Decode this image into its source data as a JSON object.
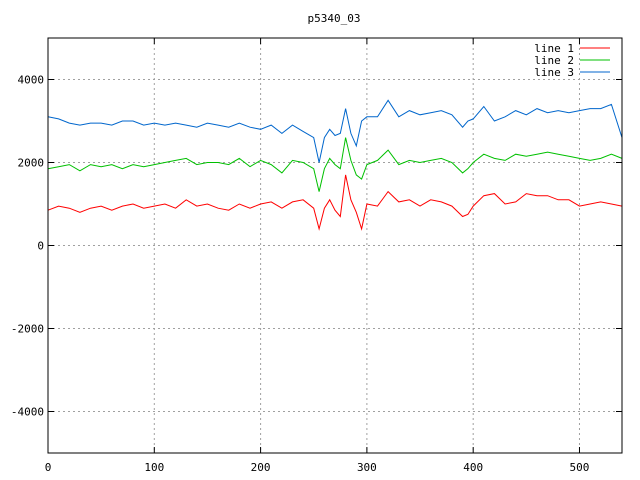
{
  "chart_data": {
    "type": "line",
    "title": "p5340_03",
    "xlabel": "",
    "ylabel": "",
    "xlim": [
      0,
      540
    ],
    "ylim": [
      -5000,
      5000
    ],
    "xticks": [
      0,
      100,
      200,
      300,
      400,
      500
    ],
    "yticks": [
      -4000,
      -2000,
      0,
      2000,
      4000
    ],
    "grid": true,
    "legend_position": "top-right",
    "series": [
      {
        "name": "line 1",
        "color": "#ff0000",
        "x": [
          0,
          10,
          20,
          30,
          40,
          50,
          60,
          70,
          80,
          90,
          100,
          110,
          120,
          130,
          140,
          150,
          160,
          170,
          180,
          190,
          200,
          210,
          220,
          230,
          240,
          250,
          255,
          260,
          265,
          270,
          275,
          280,
          285,
          290,
          295,
          300,
          310,
          320,
          330,
          340,
          350,
          360,
          370,
          380,
          390,
          395,
          400,
          410,
          420,
          430,
          440,
          450,
          460,
          470,
          480,
          490,
          500,
          510,
          520,
          530,
          540
        ],
        "y": [
          850,
          950,
          900,
          800,
          900,
          950,
          850,
          950,
          1000,
          900,
          950,
          1000,
          900,
          1100,
          950,
          1000,
          900,
          850,
          1000,
          900,
          1000,
          1050,
          900,
          1050,
          1100,
          900,
          400,
          900,
          1100,
          850,
          700,
          1700,
          1100,
          800,
          400,
          1000,
          950,
          1300,
          1050,
          1100,
          950,
          1100,
          1050,
          950,
          700,
          750,
          950,
          1200,
          1250,
          1000,
          1050,
          1250,
          1200,
          1200,
          1100,
          1100,
          950,
          1000,
          1050,
          1000,
          950
        ]
      },
      {
        "name": "line 2",
        "color": "#00c000",
        "x": [
          0,
          10,
          20,
          30,
          40,
          50,
          60,
          70,
          80,
          90,
          100,
          110,
          120,
          130,
          140,
          150,
          160,
          170,
          180,
          190,
          200,
          210,
          220,
          230,
          240,
          250,
          255,
          260,
          265,
          270,
          275,
          280,
          285,
          290,
          295,
          300,
          310,
          320,
          330,
          340,
          350,
          360,
          370,
          380,
          390,
          395,
          400,
          410,
          420,
          430,
          440,
          450,
          460,
          470,
          480,
          490,
          500,
          510,
          520,
          530,
          540
        ],
        "y": [
          1850,
          1900,
          1950,
          1800,
          1950,
          1900,
          1950,
          1850,
          1950,
          1900,
          1950,
          2000,
          2050,
          2100,
          1950,
          2000,
          2000,
          1950,
          2100,
          1900,
          2050,
          1950,
          1750,
          2050,
          2000,
          1850,
          1300,
          1850,
          2100,
          1950,
          1850,
          2600,
          2050,
          1700,
          1600,
          1950,
          2050,
          2300,
          1950,
          2050,
          2000,
          2050,
          2100,
          2000,
          1750,
          1850,
          2000,
          2200,
          2100,
          2050,
          2200,
          2150,
          2200,
          2250,
          2200,
          2150,
          2100,
          2050,
          2100,
          2200,
          2100
        ]
      },
      {
        "name": "line 3",
        "color": "#0066cc",
        "x": [
          0,
          10,
          20,
          30,
          40,
          50,
          60,
          70,
          80,
          90,
          100,
          110,
          120,
          130,
          140,
          150,
          160,
          170,
          180,
          190,
          200,
          210,
          220,
          230,
          240,
          250,
          255,
          260,
          265,
          270,
          275,
          280,
          285,
          290,
          295,
          300,
          310,
          320,
          330,
          340,
          350,
          360,
          370,
          380,
          390,
          395,
          400,
          410,
          420,
          430,
          440,
          450,
          460,
          470,
          480,
          490,
          500,
          510,
          520,
          530,
          540
        ],
        "y": [
          3100,
          3050,
          2950,
          2900,
          2950,
          2950,
          2900,
          3000,
          3000,
          2900,
          2950,
          2900,
          2950,
          2900,
          2850,
          2950,
          2900,
          2850,
          2950,
          2850,
          2800,
          2900,
          2700,
          2900,
          2750,
          2600,
          2000,
          2600,
          2800,
          2650,
          2700,
          3300,
          2700,
          2400,
          3000,
          3100,
          3100,
          3500,
          3100,
          3250,
          3150,
          3200,
          3250,
          3150,
          2850,
          3000,
          3050,
          3350,
          3000,
          3100,
          3250,
          3150,
          3300,
          3200,
          3250,
          3200,
          3250,
          3300,
          3300,
          3400,
          2600
        ]
      }
    ]
  }
}
